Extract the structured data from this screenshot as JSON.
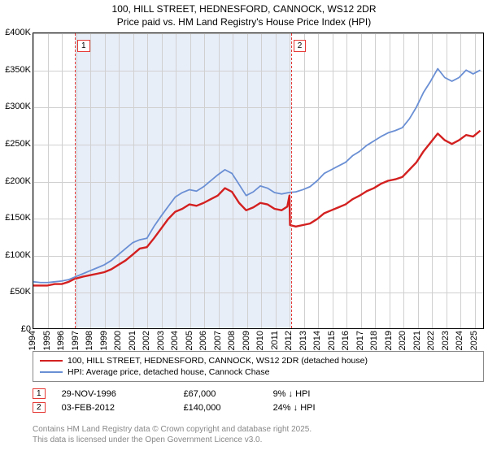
{
  "title_line1": "100, HILL STREET, HEDNESFORD, CANNOCK, WS12 2DR",
  "title_line2": "Price paid vs. HM Land Registry's House Price Index (HPI)",
  "chart": {
    "type": "line",
    "background_color": "#ffffff",
    "grid_color": "#d0d0d0",
    "shade_region": {
      "x_start": 1996.91,
      "x_end": 2012.09,
      "color": "#e8eef8"
    },
    "x": {
      "min": 1994,
      "max": 2025.7,
      "ticks": [
        1994,
        1995,
        1996,
        1997,
        1998,
        1999,
        2000,
        2001,
        2002,
        2003,
        2004,
        2005,
        2006,
        2007,
        2008,
        2009,
        2010,
        2011,
        2012,
        2013,
        2014,
        2015,
        2016,
        2017,
        2018,
        2019,
        2020,
        2021,
        2022,
        2023,
        2024,
        2025
      ],
      "tick_fontsize": 11,
      "rotation": -90
    },
    "y": {
      "min": 0,
      "max": 400000,
      "ticks": [
        0,
        50000,
        100000,
        150000,
        200000,
        250000,
        300000,
        350000,
        400000
      ],
      "tick_labels": [
        "£0",
        "£50K",
        "£100K",
        "£150K",
        "£200K",
        "£250K",
        "£300K",
        "£350K",
        "£400K"
      ],
      "tick_fontsize": 11
    },
    "series": [
      {
        "id": "price_paid",
        "label": "100, HILL STREET, HEDNESFORD, CANNOCK, WS12 2DR (detached house)",
        "color": "#d32020",
        "width": 2.4,
        "points": [
          [
            1994.0,
            58000
          ],
          [
            1994.5,
            58000
          ],
          [
            1995.0,
            58000
          ],
          [
            1995.5,
            60000
          ],
          [
            1996.0,
            60000
          ],
          [
            1996.5,
            63000
          ],
          [
            1996.91,
            67000
          ],
          [
            1997.5,
            70000
          ],
          [
            1998.0,
            72000
          ],
          [
            1998.5,
            74000
          ],
          [
            1999.0,
            76000
          ],
          [
            1999.5,
            80000
          ],
          [
            2000.0,
            86000
          ],
          [
            2000.5,
            92000
          ],
          [
            2001.0,
            100000
          ],
          [
            2001.5,
            108000
          ],
          [
            2002.0,
            110000
          ],
          [
            2002.5,
            122000
          ],
          [
            2003.0,
            135000
          ],
          [
            2003.5,
            148000
          ],
          [
            2004.0,
            158000
          ],
          [
            2004.5,
            162000
          ],
          [
            2005.0,
            168000
          ],
          [
            2005.5,
            166000
          ],
          [
            2006.0,
            170000
          ],
          [
            2006.5,
            175000
          ],
          [
            2007.0,
            180000
          ],
          [
            2007.5,
            190000
          ],
          [
            2008.0,
            185000
          ],
          [
            2008.5,
            170000
          ],
          [
            2009.0,
            160000
          ],
          [
            2009.5,
            164000
          ],
          [
            2010.0,
            170000
          ],
          [
            2010.5,
            168000
          ],
          [
            2011.0,
            162000
          ],
          [
            2011.5,
            160000
          ],
          [
            2011.9,
            165000
          ],
          [
            2012.05,
            180000
          ],
          [
            2012.09,
            140000
          ],
          [
            2012.5,
            138000
          ],
          [
            2013.0,
            140000
          ],
          [
            2013.5,
            142000
          ],
          [
            2014.0,
            148000
          ],
          [
            2014.5,
            156000
          ],
          [
            2015.0,
            160000
          ],
          [
            2015.5,
            164000
          ],
          [
            2016.0,
            168000
          ],
          [
            2016.5,
            175000
          ],
          [
            2017.0,
            180000
          ],
          [
            2017.5,
            186000
          ],
          [
            2018.0,
            190000
          ],
          [
            2018.5,
            196000
          ],
          [
            2019.0,
            200000
          ],
          [
            2019.5,
            202000
          ],
          [
            2020.0,
            205000
          ],
          [
            2020.5,
            215000
          ],
          [
            2021.0,
            225000
          ],
          [
            2021.5,
            240000
          ],
          [
            2022.0,
            252000
          ],
          [
            2022.5,
            264000
          ],
          [
            2023.0,
            255000
          ],
          [
            2023.5,
            250000
          ],
          [
            2024.0,
            255000
          ],
          [
            2024.5,
            262000
          ],
          [
            2025.0,
            260000
          ],
          [
            2025.5,
            268000
          ]
        ]
      },
      {
        "id": "hpi",
        "label": "HPI: Average price, detached house, Cannock Chase",
        "color": "#6a8fd4",
        "width": 1.8,
        "points": [
          [
            1994.0,
            63000
          ],
          [
            1994.5,
            62000
          ],
          [
            1995.0,
            62000
          ],
          [
            1995.5,
            63000
          ],
          [
            1996.0,
            64000
          ],
          [
            1996.5,
            66000
          ],
          [
            1997.0,
            70000
          ],
          [
            1997.5,
            74000
          ],
          [
            1998.0,
            78000
          ],
          [
            1998.5,
            82000
          ],
          [
            1999.0,
            86000
          ],
          [
            1999.5,
            92000
          ],
          [
            2000.0,
            100000
          ],
          [
            2000.5,
            108000
          ],
          [
            2001.0,
            116000
          ],
          [
            2001.5,
            120000
          ],
          [
            2002.0,
            122000
          ],
          [
            2002.5,
            138000
          ],
          [
            2003.0,
            152000
          ],
          [
            2003.5,
            165000
          ],
          [
            2004.0,
            178000
          ],
          [
            2004.5,
            184000
          ],
          [
            2005.0,
            188000
          ],
          [
            2005.5,
            186000
          ],
          [
            2006.0,
            192000
          ],
          [
            2006.5,
            200000
          ],
          [
            2007.0,
            208000
          ],
          [
            2007.5,
            215000
          ],
          [
            2008.0,
            210000
          ],
          [
            2008.5,
            195000
          ],
          [
            2009.0,
            180000
          ],
          [
            2009.5,
            185000
          ],
          [
            2010.0,
            193000
          ],
          [
            2010.5,
            190000
          ],
          [
            2011.0,
            184000
          ],
          [
            2011.5,
            182000
          ],
          [
            2012.0,
            184000
          ],
          [
            2012.5,
            185000
          ],
          [
            2013.0,
            188000
          ],
          [
            2013.5,
            192000
          ],
          [
            2014.0,
            200000
          ],
          [
            2014.5,
            210000
          ],
          [
            2015.0,
            215000
          ],
          [
            2015.5,
            220000
          ],
          [
            2016.0,
            225000
          ],
          [
            2016.5,
            234000
          ],
          [
            2017.0,
            240000
          ],
          [
            2017.5,
            248000
          ],
          [
            2018.0,
            254000
          ],
          [
            2018.5,
            260000
          ],
          [
            2019.0,
            265000
          ],
          [
            2019.5,
            268000
          ],
          [
            2020.0,
            272000
          ],
          [
            2020.5,
            284000
          ],
          [
            2021.0,
            300000
          ],
          [
            2021.5,
            320000
          ],
          [
            2022.0,
            335000
          ],
          [
            2022.5,
            352000
          ],
          [
            2023.0,
            340000
          ],
          [
            2023.5,
            335000
          ],
          [
            2024.0,
            340000
          ],
          [
            2024.5,
            350000
          ],
          [
            2025.0,
            345000
          ],
          [
            2025.5,
            350000
          ]
        ]
      }
    ],
    "markers": [
      {
        "n": "1",
        "x": 1996.91
      },
      {
        "n": "2",
        "x": 2012.09
      }
    ]
  },
  "annotations": [
    {
      "n": "1",
      "date": "29-NOV-1996",
      "price": "£67,000",
      "delta": "9% ↓ HPI"
    },
    {
      "n": "2",
      "date": "03-FEB-2012",
      "price": "£140,000",
      "delta": "24% ↓ HPI"
    }
  ],
  "footer_line1": "Contains HM Land Registry data © Crown copyright and database right 2025.",
  "footer_line2": "This data is licensed under the Open Government Licence v3.0."
}
